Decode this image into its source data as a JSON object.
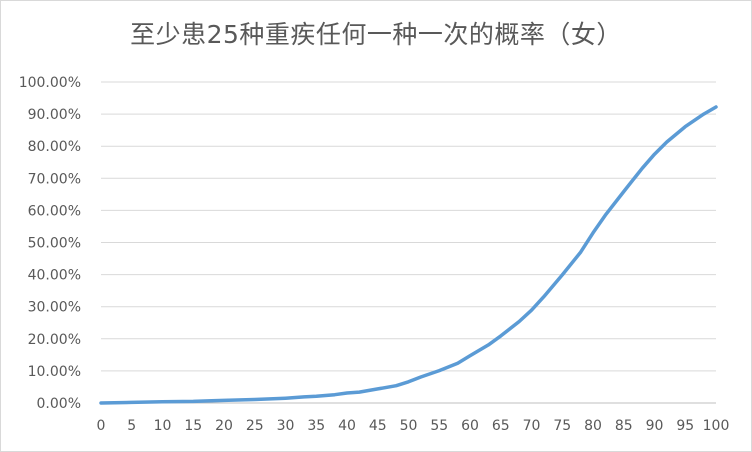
{
  "chart_data": {
    "type": "line",
    "title": "至少患25种重疾任何一种一次的概率（女）",
    "xlabel": "",
    "ylabel": "",
    "xlim": [
      0,
      100
    ],
    "ylim": [
      0,
      1
    ],
    "x_ticks": [
      "0",
      "5",
      "10",
      "15",
      "20",
      "25",
      "30",
      "35",
      "40",
      "45",
      "50",
      "55",
      "60",
      "65",
      "70",
      "75",
      "80",
      "85",
      "90",
      "95",
      "100"
    ],
    "y_ticks": [
      "0.00%",
      "10.00%",
      "20.00%",
      "30.00%",
      "40.00%",
      "50.00%",
      "60.00%",
      "70.00%",
      "80.00%",
      "90.00%",
      "100.00%"
    ],
    "grid": "horizontal",
    "legend": "none",
    "series": [
      {
        "color": "#5b9bd5",
        "x": [
          0,
          5,
          10,
          15,
          18,
          20,
          25,
          28,
          30,
          33,
          35,
          38,
          40,
          42,
          45,
          48,
          50,
          52,
          55,
          58,
          60,
          63,
          65,
          68,
          70,
          72,
          75,
          78,
          80,
          82,
          85,
          88,
          90,
          92,
          95,
          98,
          100
        ],
        "y": [
          0.0,
          0.002,
          0.004,
          0.005,
          0.007,
          0.008,
          0.011,
          0.013,
          0.015,
          0.019,
          0.021,
          0.026,
          0.031,
          0.034,
          0.044,
          0.054,
          0.066,
          0.081,
          0.101,
          0.124,
          0.147,
          0.181,
          0.209,
          0.254,
          0.289,
          0.331,
          0.399,
          0.47,
          0.53,
          0.585,
          0.659,
          0.731,
          0.775,
          0.813,
          0.861,
          0.9,
          0.922
        ]
      }
    ]
  }
}
